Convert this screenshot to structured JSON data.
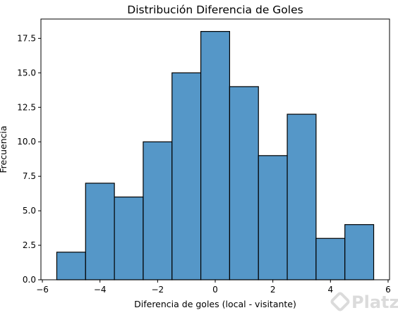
{
  "chart_data": {
    "type": "bar",
    "title": "Distribución Diferencia de Goles",
    "xlabel": "Diferencia de goles (local - visitante)",
    "ylabel": "Frecuencia",
    "bin_edges": [
      -5.5,
      -4.5,
      -3.5,
      -2.5,
      -1.5,
      -0.5,
      0.5,
      1.5,
      2.5,
      3.5,
      4.5,
      5.5
    ],
    "values": [
      2,
      7,
      6,
      10,
      15,
      18,
      14,
      9,
      12,
      3,
      4
    ],
    "xlim": [
      -6.05,
      6.05
    ],
    "ylim": [
      0,
      18.9
    ],
    "xticks": [
      -6,
      -4,
      -2,
      0,
      2,
      4,
      6
    ],
    "xtick_labels": [
      "−6",
      "−4",
      "−2",
      "0",
      "2",
      "4",
      "6"
    ],
    "yticks": [
      0,
      2.5,
      5,
      7.5,
      10,
      12.5,
      15,
      17.5
    ],
    "ytick_labels": [
      "0.0",
      "2.5",
      "5.0",
      "7.5",
      "10.0",
      "12.5",
      "15.0",
      "17.5"
    ],
    "grid": false,
    "bar_color": "#5597c8",
    "edge_color": "#000000"
  },
  "watermark": {
    "text": "Platzi",
    "icon": "platzi-logo-icon"
  }
}
